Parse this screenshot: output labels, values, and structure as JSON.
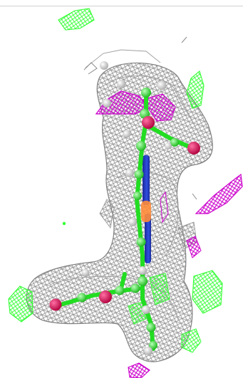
{
  "scene": {
    "description_colors": {
      "density_mesh": "#8c8c8c",
      "positive_diff_mesh": "#33ff33",
      "negative_diff_mesh": "#cc00cc",
      "carbon": "#33ee33",
      "oxygen": "#e0105a",
      "nitrogen": "#2233cc",
      "hydrogen": "#e6e6e6",
      "phosphorus": "#ff8c3a"
    },
    "icons": [
      "mesh-icon",
      "atom-icon"
    ]
  }
}
